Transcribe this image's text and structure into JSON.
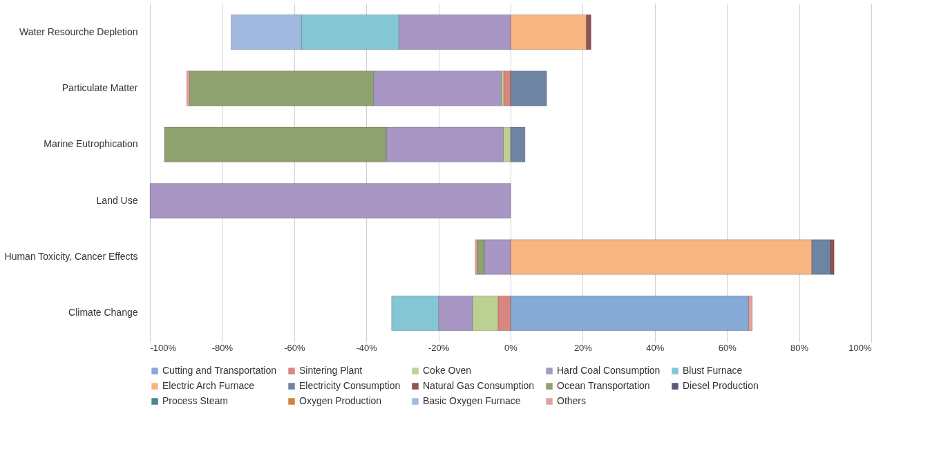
{
  "chart_data": {
    "type": "bar",
    "orientation": "horizontal",
    "stacked": true,
    "categories": [
      "Water Resourche Depletion",
      "Particulate Matter",
      "Marine Eutrophication",
      "Land Use",
      "Human Toxicity, Cancer Effects",
      "Climate Change"
    ],
    "series": [
      {
        "name": "Cutting and Transportation",
        "color": "#7ea6d3",
        "values": [
          null,
          null,
          null,
          null,
          null,
          66
        ]
      },
      {
        "name": "Sintering Plant",
        "color": "#d9807a",
        "values": [
          null,
          -1.9,
          null,
          null,
          null,
          -3.5
        ]
      },
      {
        "name": "Coke Oven",
        "color": "#b9cf8c",
        "values": [
          null,
          -0.7,
          -2,
          null,
          null,
          -7
        ]
      },
      {
        "name": "Hard Coal Consumption",
        "color": "#a391c0",
        "values": [
          -31,
          -35.4,
          -32.5,
          -100,
          -7.3,
          -9.5
        ]
      },
      {
        "name": "Blust Furnace",
        "color": "#7fc3d3",
        "values": [
          -27,
          null,
          null,
          null,
          null,
          -13
        ]
      },
      {
        "name": "Electric Arch Furnace",
        "color": "#f7b27c",
        "values": [
          21,
          null,
          null,
          null,
          83.5,
          null
        ]
      },
      {
        "name": "Electricity Consumption",
        "color": "#687d9e",
        "values": [
          null,
          10,
          4,
          null,
          5.2,
          null
        ]
      },
      {
        "name": "Natural Gas Consumption",
        "color": "#8b4a4a",
        "values": [
          1.3,
          null,
          null,
          null,
          1,
          null
        ]
      },
      {
        "name": "Ocean Transportation",
        "color": "#8a9c68",
        "values": [
          null,
          -51,
          -61.5,
          null,
          -1.9,
          null
        ]
      },
      {
        "name": "Diesel Production",
        "color": "#5b4a7a",
        "values": [
          null,
          null,
          null,
          null,
          null,
          null
        ]
      },
      {
        "name": "Process Steam",
        "color": "#3e7f8a",
        "values": [
          null,
          null,
          null,
          null,
          null,
          null
        ]
      },
      {
        "name": "Oxygen Production",
        "color": "#d27a32",
        "values": [
          null,
          null,
          null,
          null,
          null,
          null
        ]
      },
      {
        "name": "Basic Oxygen Furnace",
        "color": "#9cb6de",
        "values": [
          -19.5,
          null,
          null,
          null,
          null,
          null
        ]
      },
      {
        "name": "Others",
        "color": "#e39a98",
        "values": [
          null,
          -0.8,
          null,
          null,
          -0.6,
          1
        ]
      }
    ],
    "xlim": [
      -100,
      100
    ],
    "xticks": [
      {
        "value": -100,
        "label": "-100%"
      },
      {
        "value": -80,
        "label": "-80%"
      },
      {
        "value": -60,
        "label": "-60%"
      },
      {
        "value": -40,
        "label": "-40%"
      },
      {
        "value": -20,
        "label": "-20%"
      },
      {
        "value": 0,
        "label": "0%"
      },
      {
        "value": 20,
        "label": "20%"
      },
      {
        "value": 40,
        "label": "40%"
      },
      {
        "value": 60,
        "label": "60%"
      },
      {
        "value": 80,
        "label": "80%"
      },
      {
        "value": 100,
        "label": "100%"
      }
    ],
    "grid": "x",
    "legend": "bottom"
  }
}
